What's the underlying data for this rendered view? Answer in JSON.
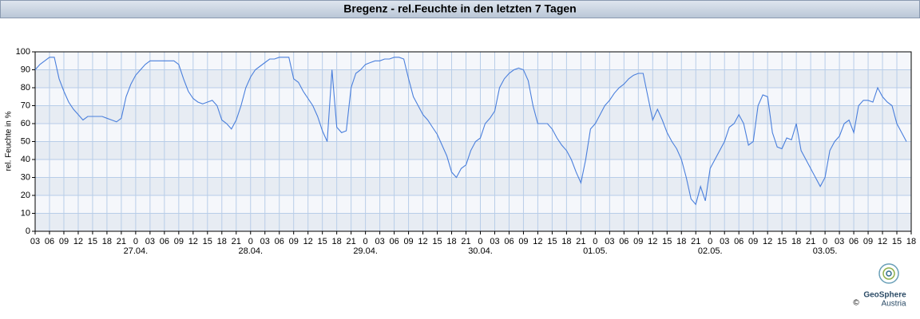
{
  "chart_data": {
    "type": "line",
    "title": "Bregenz - rel.Feuchte in den letzten 7 Tagen",
    "y_label": "rel. Feuchte in %",
    "color": "#4a7fdc",
    "grid": true,
    "ylim": [
      0,
      100
    ],
    "yticks": [
      0,
      10,
      20,
      30,
      40,
      50,
      60,
      70,
      80,
      90,
      100
    ],
    "xlim": [
      3,
      186
    ],
    "xticks": [
      {
        "value": 3,
        "label": "03"
      },
      {
        "value": 6,
        "label": "06"
      },
      {
        "value": 9,
        "label": "09"
      },
      12,
      15,
      18,
      21,
      {
        "value": 24,
        "label": "0"
      },
      {
        "value": 27,
        "label": "03"
      },
      {
        "value": 30,
        "label": "06"
      },
      {
        "value": 33,
        "label": "09"
      },
      {
        "value": 36,
        "label": "12"
      },
      {
        "value": 39,
        "label": "15"
      },
      {
        "value": 42,
        "label": "18"
      },
      {
        "value": 45,
        "label": "21"
      },
      {
        "value": 48,
        "label": "0"
      },
      {
        "value": 51,
        "label": "03"
      },
      {
        "value": 54,
        "label": "06"
      },
      {
        "value": 57,
        "label": "09"
      },
      {
        "value": 60,
        "label": "12"
      },
      {
        "value": 63,
        "label": "15"
      },
      {
        "value": 66,
        "label": "18"
      },
      {
        "value": 69,
        "label": "21"
      },
      {
        "value": 72,
        "label": "0"
      },
      {
        "value": 75,
        "label": "03"
      },
      {
        "value": 78,
        "label": "06"
      },
      {
        "value": 81,
        "label": "09"
      },
      {
        "value": 84,
        "label": "12"
      },
      {
        "value": 87,
        "label": "15"
      },
      {
        "value": 90,
        "label": "18"
      },
      {
        "value": 93,
        "label": "21"
      },
      {
        "value": 96,
        "label": "0"
      },
      {
        "value": 99,
        "label": "03"
      },
      {
        "value": 102,
        "label": "06"
      },
      {
        "value": 105,
        "label": "09"
      },
      {
        "value": 108,
        "label": "12"
      },
      {
        "value": 111,
        "label": "15"
      },
      {
        "value": 114,
        "label": "18"
      },
      {
        "value": 117,
        "label": "21"
      },
      {
        "value": 120,
        "label": "0"
      },
      {
        "value": 123,
        "label": "03"
      },
      {
        "value": 126,
        "label": "06"
      },
      {
        "value": 129,
        "label": "09"
      },
      {
        "value": 132,
        "label": "12"
      },
      {
        "value": 135,
        "label": "15"
      },
      {
        "value": 138,
        "label": "18"
      },
      {
        "value": 141,
        "label": "21"
      },
      {
        "value": 144,
        "label": "0"
      },
      {
        "value": 147,
        "label": "03"
      },
      {
        "value": 150,
        "label": "06"
      },
      {
        "value": 153,
        "label": "09"
      },
      {
        "value": 156,
        "label": "12"
      },
      {
        "value": 159,
        "label": "15"
      },
      {
        "value": 162,
        "label": "18"
      },
      {
        "value": 165,
        "label": "21"
      },
      {
        "value": 168,
        "label": "0"
      },
      {
        "value": 171,
        "label": "03"
      },
      {
        "value": 174,
        "label": "06"
      },
      {
        "value": 177,
        "label": "09"
      },
      {
        "value": 180,
        "label": "12"
      },
      {
        "value": 183,
        "label": "15"
      },
      {
        "value": 186,
        "label": "18"
      }
    ],
    "date_labels": [
      {
        "text": "27.04.",
        "x": 24
      },
      {
        "text": "28.04.",
        "x": 48
      },
      {
        "text": "29.04.",
        "x": 72
      },
      {
        "text": "30.04.",
        "x": 96
      },
      {
        "text": "01.05.",
        "x": 120
      },
      {
        "text": "02.05.",
        "x": 144
      },
      {
        "text": "03.05.",
        "x": 168
      }
    ],
    "x": [
      3,
      4,
      5,
      6,
      7,
      8,
      9,
      10,
      11,
      12,
      13,
      14,
      15,
      16,
      17,
      18,
      19,
      20,
      21,
      22,
      23,
      24,
      25,
      26,
      27,
      28,
      29,
      30,
      31,
      32,
      33,
      34,
      35,
      36,
      37,
      38,
      39,
      40,
      41,
      42,
      43,
      44,
      45,
      46,
      47,
      48,
      49,
      50,
      51,
      52,
      53,
      54,
      55,
      56,
      57,
      58,
      59,
      60,
      61,
      62,
      63,
      64,
      65,
      66,
      67,
      68,
      69,
      70,
      71,
      72,
      73,
      74,
      75,
      76,
      77,
      78,
      79,
      80,
      81,
      82,
      83,
      84,
      85,
      86,
      87,
      88,
      89,
      90,
      91,
      92,
      93,
      94,
      95,
      96,
      97,
      98,
      99,
      100,
      101,
      102,
      103,
      104,
      105,
      106,
      107,
      108,
      109,
      110,
      111,
      112,
      113,
      114,
      115,
      116,
      117,
      118,
      119,
      120,
      121,
      122,
      123,
      124,
      125,
      126,
      127,
      128,
      129,
      130,
      131,
      132,
      133,
      134,
      135,
      136,
      137,
      138,
      139,
      140,
      141,
      142,
      143,
      144,
      145,
      146,
      147,
      148,
      149,
      150,
      151,
      152,
      153,
      154,
      155,
      156,
      157,
      158,
      159,
      160,
      161,
      162,
      163,
      164,
      165,
      166,
      167,
      168,
      169,
      170,
      171,
      172,
      173,
      174,
      175,
      176,
      177,
      178,
      179,
      180,
      181,
      182,
      183,
      184,
      185
    ],
    "values": [
      90,
      93,
      95,
      97,
      97,
      85,
      78,
      72,
      68,
      65,
      62,
      64,
      64,
      64,
      64,
      63,
      62,
      61,
      63,
      75,
      82,
      87,
      90,
      93,
      95,
      95,
      95,
      95,
      95,
      95,
      93,
      85,
      78,
      74,
      72,
      71,
      72,
      73,
      70,
      62,
      60,
      57,
      62,
      70,
      80,
      86,
      90,
      92,
      94,
      96,
      96,
      97,
      97,
      97,
      85,
      83,
      78,
      74,
      70,
      64,
      56,
      50,
      90,
      58,
      55,
      56,
      80,
      88,
      90,
      93,
      94,
      95,
      95,
      96,
      96,
      97,
      97,
      96,
      85,
      75,
      70,
      65,
      62,
      58,
      54,
      48,
      42,
      33,
      30,
      35,
      37,
      45,
      50,
      52,
      60,
      63,
      67,
      80,
      85,
      88,
      90,
      91,
      90,
      84,
      70,
      60,
      60,
      60,
      57,
      52,
      48,
      45,
      40,
      33,
      27,
      40,
      57,
      60,
      65,
      70,
      73,
      77,
      80,
      82,
      85,
      87,
      88,
      88,
      75,
      62,
      68,
      62,
      55,
      50,
      46,
      40,
      30,
      18,
      15,
      25,
      17,
      35,
      40,
      45,
      50,
      58,
      60,
      65,
      60,
      48,
      50,
      70,
      76,
      75,
      55,
      47,
      46,
      52,
      51,
      60,
      45,
      40,
      35,
      30,
      25,
      30,
      45,
      50,
      53,
      60,
      62,
      55,
      70,
      73,
      73,
      72,
      80,
      75,
      72,
      70,
      60,
      55,
      50
    ]
  },
  "logo": {
    "name": "GeoSphere",
    "sub": "Austria",
    "copyright": "©"
  }
}
